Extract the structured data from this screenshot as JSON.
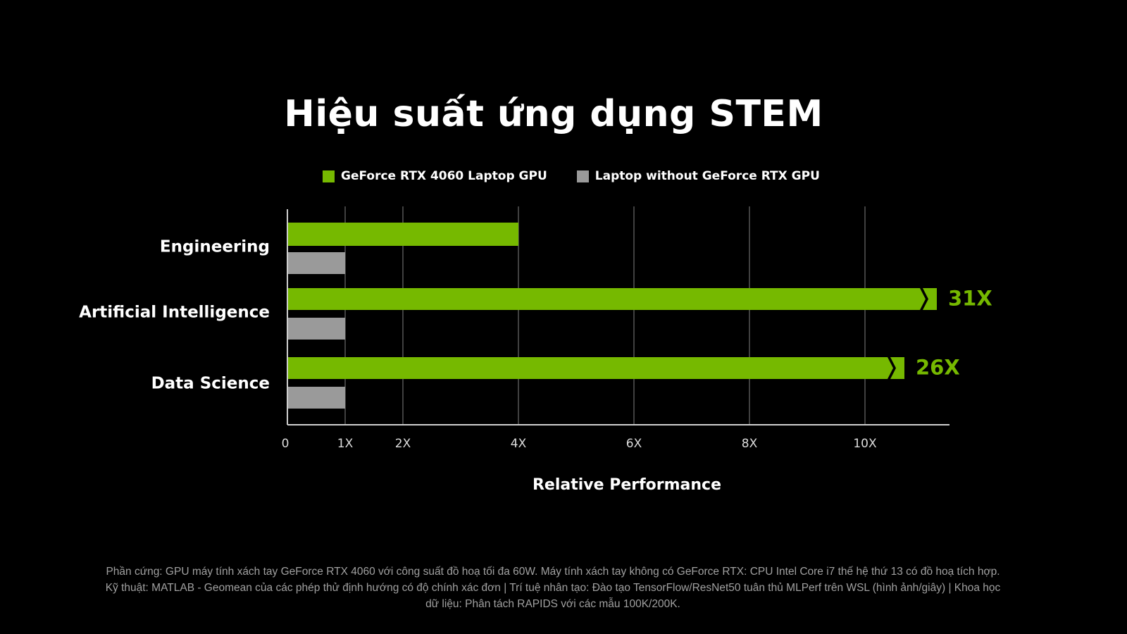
{
  "title": "Hiệu suất ứng dụng STEM",
  "legend": {
    "series_1": "GeForce RTX 4060 Laptop GPU",
    "series_2": "Laptop without GeForce RTX GPU"
  },
  "colors": {
    "rtx": "#76b900",
    "no_rtx": "#9a9a9a",
    "grid": "#555555",
    "axis": "#cfcfcf"
  },
  "chart_data": {
    "type": "bar",
    "orientation": "horizontal",
    "categories": [
      "Engineering",
      "Artificial Intelligence",
      "Data Science"
    ],
    "series": [
      {
        "name": "GeForce RTX 4060 Laptop GPU",
        "values": [
          4,
          31,
          26
        ],
        "value_labels": [
          "",
          "31X",
          "26X"
        ],
        "broken_axis": [
          false,
          true,
          true
        ]
      },
      {
        "name": "Laptop without GeForce RTX GPU",
        "values": [
          1,
          1,
          1
        ]
      }
    ],
    "x_ticks": [
      {
        "value": 0,
        "label": "0"
      },
      {
        "value": 1,
        "label": "1X"
      },
      {
        "value": 2,
        "label": "2X"
      },
      {
        "value": 4,
        "label": "4X"
      },
      {
        "value": 6,
        "label": "6X"
      },
      {
        "value": 8,
        "label": "8X"
      },
      {
        "value": 10,
        "label": "10X"
      }
    ],
    "xlim": [
      0,
      11.5
    ],
    "xlabel": "Relative Performance",
    "ylabel": "",
    "grid": true,
    "legend_position": "top"
  },
  "footnote": "Phần cứng: GPU máy tính xách tay GeForce RTX 4060 với công suất đồ hoạ tối đa 60W. Máy tính xách tay không có GeForce RTX: CPU Intel Core i7 thế hệ thứ 13 có đồ hoạ tích hợp. Kỹ thuật: MATLAB - Geomean của các phép thử định hướng có độ chính xác đơn | Trí tuệ nhân tạo: Đào tạo TensorFlow/ResNet50 tuân thủ MLPerf trên WSL (hình ảnh/giây) | Khoa học dữ liệu: Phân tách RAPIDS với các mẫu 100K/200K."
}
